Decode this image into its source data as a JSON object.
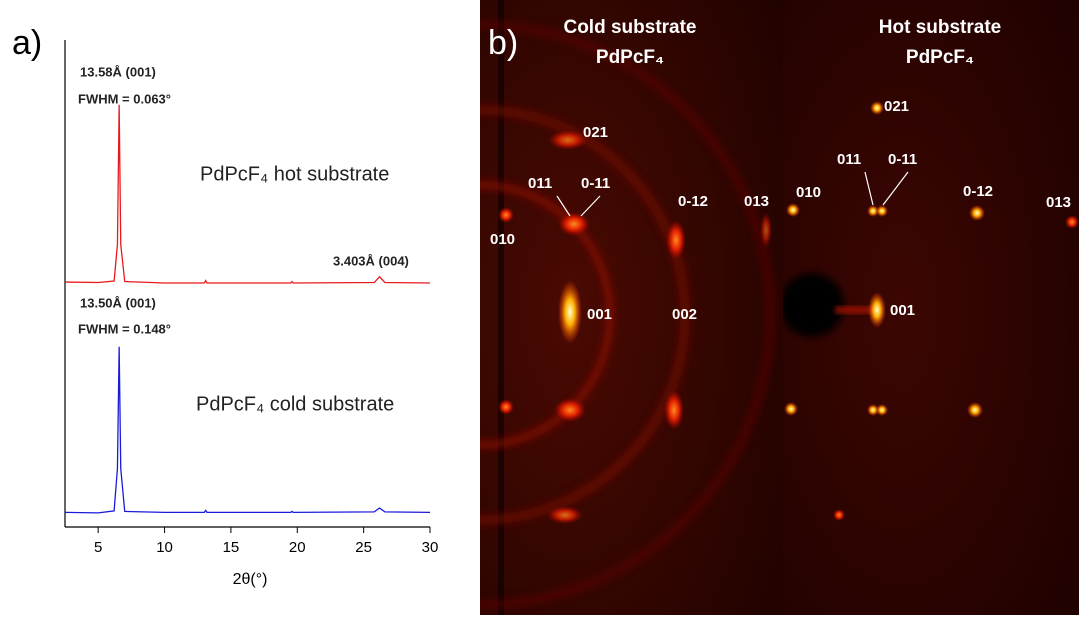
{
  "chart_data": {
    "type": "line",
    "panel_label": "a)",
    "xlabel": "2θ(°)",
    "xlim": [
      2.5,
      30
    ],
    "xticks": [
      5,
      10,
      15,
      20,
      25,
      30
    ],
    "ylim": [
      0,
      100
    ],
    "x": [
      2.5,
      5,
      6.2,
      6.45,
      6.58,
      6.7,
      7,
      10,
      13.0,
      13.1,
      13.2,
      19.5,
      19.6,
      19.7,
      25.8,
      26.2,
      26.6,
      30
    ],
    "series": [
      {
        "name": "PdPcF₄ hot substrate",
        "color": "#e8191c",
        "values": [
          50.3,
          50.2,
          50.5,
          58,
          86.7,
          58,
          50.4,
          50.1,
          50.1,
          50.6,
          50.1,
          50.1,
          50.4,
          50.1,
          50.2,
          51.4,
          50.2,
          50.1
        ]
      },
      {
        "name": "PdPcF₄ cold substrate",
        "color": "#1a1adb",
        "values": [
          3.0,
          2.9,
          3.3,
          12,
          37,
          12,
          3.2,
          3.0,
          3.0,
          3.4,
          3.0,
          3.0,
          3.2,
          3.0,
          3.1,
          3.9,
          3.1,
          3.0
        ]
      }
    ],
    "annotations": [
      "13.58Å (001)",
      "FWHM = 0.063°",
      "3.403Å (004)",
      "13.50Å (001)",
      "FWHM = 0.148°"
    ]
  },
  "panel_b": {
    "label": "b)",
    "left": {
      "title": [
        "Cold substrate",
        "PdPcF₄"
      ],
      "spots": [
        "021",
        "011",
        "0-11",
        "0-12",
        "013",
        "010",
        "001",
        "002"
      ]
    },
    "right": {
      "title": [
        "Hot substrate",
        "PdPcF₄"
      ],
      "spots": [
        "021",
        "011",
        "0-11",
        "010",
        "0-12",
        "013",
        "001"
      ]
    }
  }
}
